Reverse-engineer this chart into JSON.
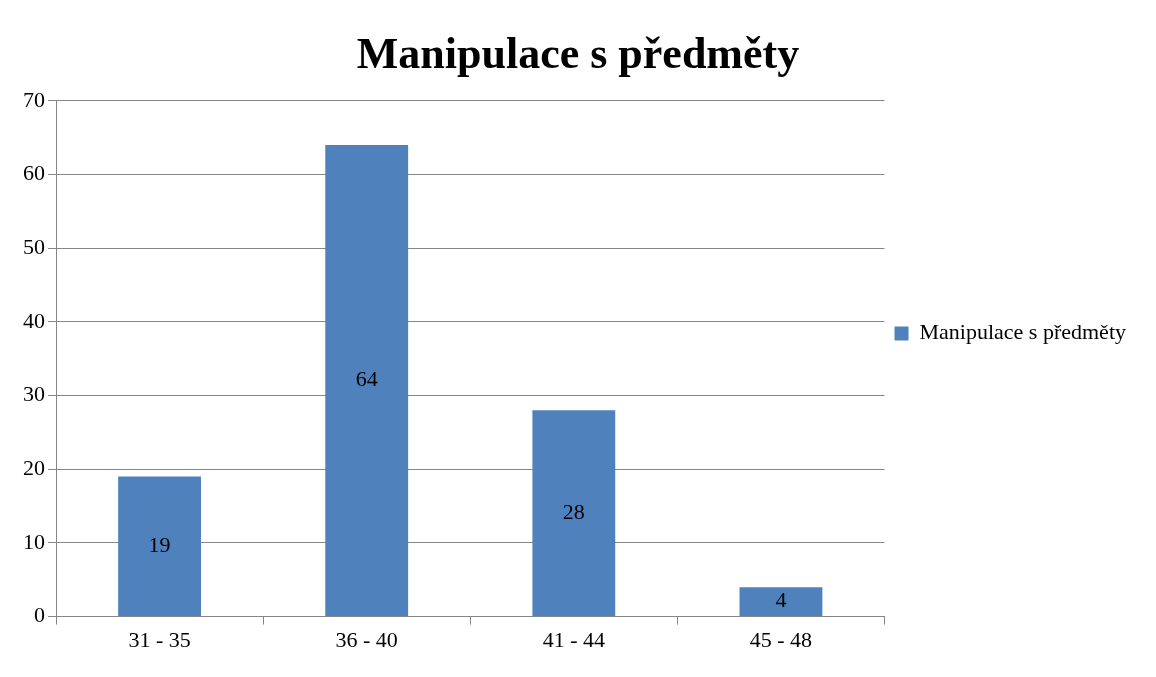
{
  "chart_data": {
    "type": "bar",
    "title": "Manipulace s předměty",
    "categories": [
      "31 - 35",
      "36 - 40",
      "41 - 44",
      "45 - 48"
    ],
    "series": [
      {
        "name": "Manipulace s předměty",
        "color": "#4f81bd",
        "values": [
          19,
          64,
          28,
          4
        ]
      }
    ],
    "ylim": [
      0,
      70
    ],
    "yticks": [
      0,
      10,
      20,
      30,
      40,
      50,
      60,
      70
    ],
    "grid": "y",
    "legend": "right",
    "data_labels": true
  }
}
